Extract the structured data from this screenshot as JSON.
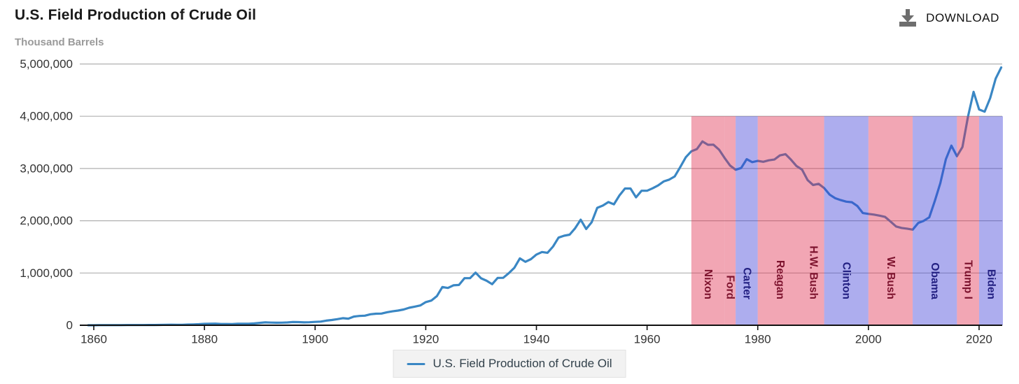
{
  "header": {
    "title": "U.S. Field Production of Crude Oil",
    "subtitle": "Thousand Barrels",
    "download_label": "DOWNLOAD",
    "download_icon": "download-icon"
  },
  "legend": {
    "label": "U.S. Field Production of Crude Oil"
  },
  "colors": {
    "line": "#3a87c4",
    "grid": "#b0b0b0",
    "axis": "#111111",
    "tick_label": "#333333",
    "band_fill_R": "rgba(224,43,76,0.42)",
    "band_fill_D": "rgba(60,60,215,0.42)",
    "band_label_R": "#7d132e",
    "band_label_D": "#232082",
    "legend_marker": "#3a87c4",
    "download_icon": "#6e6e6e"
  },
  "chart_data": {
    "type": "line",
    "title": "U.S. Field Production of Crude Oil",
    "xlabel": "",
    "ylabel": "Thousand Barrels",
    "xlim": [
      1857.5,
      2024.3
    ],
    "ylim": [
      0,
      5000000
    ],
    "grid": true,
    "legend_position": "bottom",
    "x_ticks": [
      1860,
      1880,
      1900,
      1920,
      1940,
      1960,
      1980,
      2000,
      2020
    ],
    "y_ticks": [
      0,
      1000000,
      2000000,
      3000000,
      4000000,
      5000000
    ],
    "band_top_value": 4000000,
    "president_bands": [
      {
        "label": "Nixon",
        "party": "R",
        "start": 1968,
        "end": 1974
      },
      {
        "label": "Ford",
        "party": "R",
        "start": 1974,
        "end": 1976
      },
      {
        "label": "Carter",
        "party": "D",
        "start": 1976,
        "end": 1980
      },
      {
        "label": "Reagan",
        "party": "R",
        "start": 1980,
        "end": 1988
      },
      {
        "label": "H.W. Bush",
        "party": "R",
        "start": 1988,
        "end": 1992
      },
      {
        "label": "Clinton",
        "party": "D",
        "start": 1992,
        "end": 2000
      },
      {
        "label": "W. Bush",
        "party": "R",
        "start": 2000,
        "end": 2008
      },
      {
        "label": "Obama",
        "party": "D",
        "start": 2008,
        "end": 2016
      },
      {
        "label": "Trump I",
        "party": "R",
        "start": 2016,
        "end": 2020
      },
      {
        "label": "Biden",
        "party": "D",
        "start": 2020,
        "end": 2024.3
      }
    ],
    "series": [
      {
        "name": "U.S. Field Production of Crude Oil",
        "x_start": 1859,
        "x_step": 1,
        "values": [
          2,
          500,
          2114,
          3057,
          2611,
          2116,
          2498,
          3598,
          3347,
          3646,
          4215,
          5261,
          5205,
          6293,
          9894,
          10927,
          8788,
          9133,
          13350,
          15397,
          19914,
          26286,
          27661,
          30350,
          23450,
          24218,
          21859,
          28065,
          28283,
          27612,
          35164,
          45824,
          54293,
          50515,
          48431,
          49344,
          52892,
          60960,
          60476,
          55364,
          57071,
          63621,
          69389,
          88767,
          100461,
          117081,
          134717,
          126494,
          166095,
          178527,
          183171,
          209557,
          220449,
          222935,
          248446,
          265763,
          281104,
          300767,
          335316,
          355928,
          378367,
          442929,
          472183,
          557531,
          732407,
          713940,
          763743,
          770874,
          901129,
          901474,
          1007323,
          898011,
          851081,
          785159,
          905656,
          908065,
          996596,
          1099687,
          1279160,
          1214355,
          1264962,
          1353214,
          1402228,
          1386645,
          1505613,
          1677904,
          1713655,
          1733424,
          1856987,
          2020185,
          1841940,
          1973574,
          2247711,
          2289836,
          2357082,
          2314988,
          2484428,
          2617283,
          2616901,
          2448987,
          2574590,
          2574933,
          2621758,
          2676189,
          2752723,
          2786822,
          2848514,
          3027763,
          3215742,
          3329042,
          3371751,
          3517450,
          3453914,
          3455368,
          3360903,
          3202585,
          3056779,
          2976180,
          3009265,
          3178216,
          3121310,
          3146365,
          3128624,
          3156715,
          3170999,
          3249696,
          3274553,
          3168252,
          3047378,
          2979123,
          2778773,
          2684687,
          2707039,
          2624632,
          2499033,
          2431476,
          2394268,
          2366017,
          2354831,
          2281919,
          2146732,
          2130707,
          2117511,
          2097124,
          2073453,
          1983302,
          1890106,
          1862259,
          1848450,
          1829984,
          1956596,
          1998137,
          2065958,
          2377371,
          2720782,
          3177109,
          3437272,
          3235095,
          3411219,
          3991489,
          4467622,
          4129563,
          4087294,
          4346769,
          4721160,
          4935000
        ]
      }
    ]
  }
}
